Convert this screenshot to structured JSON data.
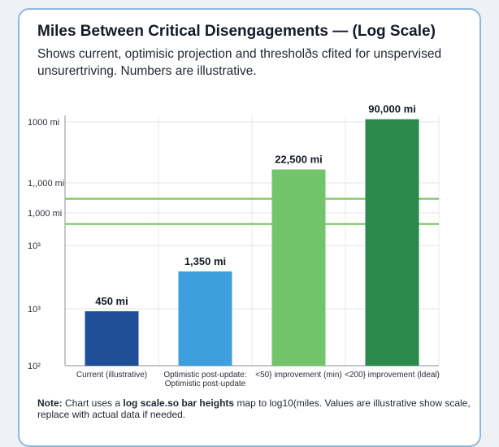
{
  "chart_data": {
    "type": "bar",
    "scale": "log",
    "title": "Miles Between Critical Disengagements — (Log Scale)",
    "subtitle_line1": "Shows current, optimisic projection and thresholðs cfited for unspervised",
    "subtitle_line2": "unsurertriving. Numbers are illustrative.",
    "categories": [
      "Current (illustrative)",
      "Optimistic post-update:",
      "<50} improvement (min)",
      "<200} improvement (ldeal)"
    ],
    "category_sublabels": [
      "",
      "Optimistic post-update",
      "",
      ""
    ],
    "values": [
      450,
      1350,
      22500,
      90000
    ],
    "value_labels": [
      "450 mi",
      "1,350 mi",
      "22,500 mi",
      "90,000 mi"
    ],
    "colors": [
      "#1f4f96",
      "#3f9fdc",
      "#72c46a",
      "#2a8a4c"
    ],
    "ytick_labels": [
      "1000 mi",
      "1,,000 mi",
      "1,000 mi",
      "10³",
      "10³",
      "10²"
    ],
    "threshold_lines": [
      {
        "value": 10000,
        "color": "#6cc04a"
      },
      {
        "value": 5000,
        "color": "#6cc04a"
      }
    ],
    "ylim": [
      100,
      100000
    ],
    "grid": true,
    "legend": "none"
  },
  "note": {
    "bold_prefix": "Note:",
    "text1": " Chart uses a ",
    "bold_mid": "log scale.so bar heights",
    "text2": " map to log10(miles. Values are illustrative show scale,",
    "line2": "replace with actual data if needed."
  }
}
